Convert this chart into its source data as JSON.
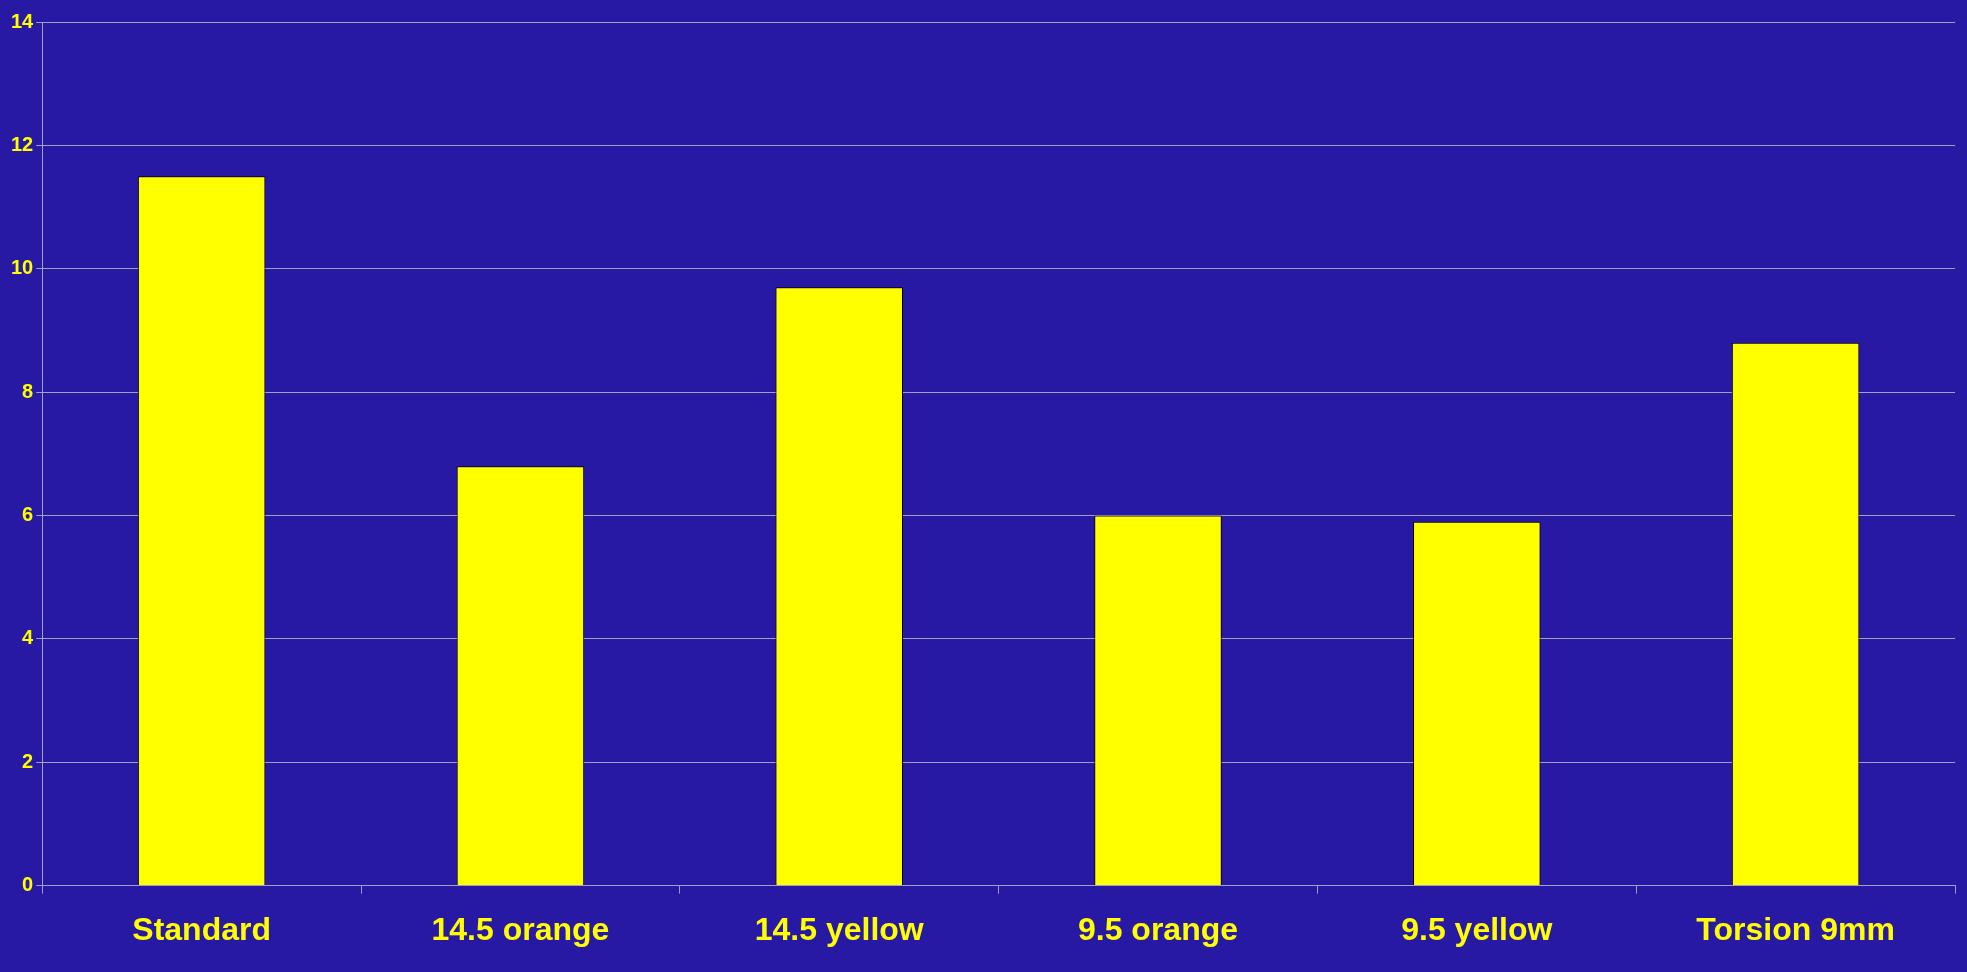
{
  "chart_data": {
    "type": "bar",
    "categories": [
      "Standard",
      "14.5 orange",
      "14.5 yellow",
      "9.5 orange",
      "9.5 yellow",
      "Torsion 9mm"
    ],
    "values": [
      11.5,
      6.8,
      9.7,
      6.0,
      5.9,
      8.8
    ],
    "color": "#ffff00",
    "ylim": [
      0,
      14
    ],
    "yticks": [
      0,
      2,
      4,
      6,
      8,
      10,
      12,
      14
    ],
    "grid": "y",
    "legend": false
  }
}
